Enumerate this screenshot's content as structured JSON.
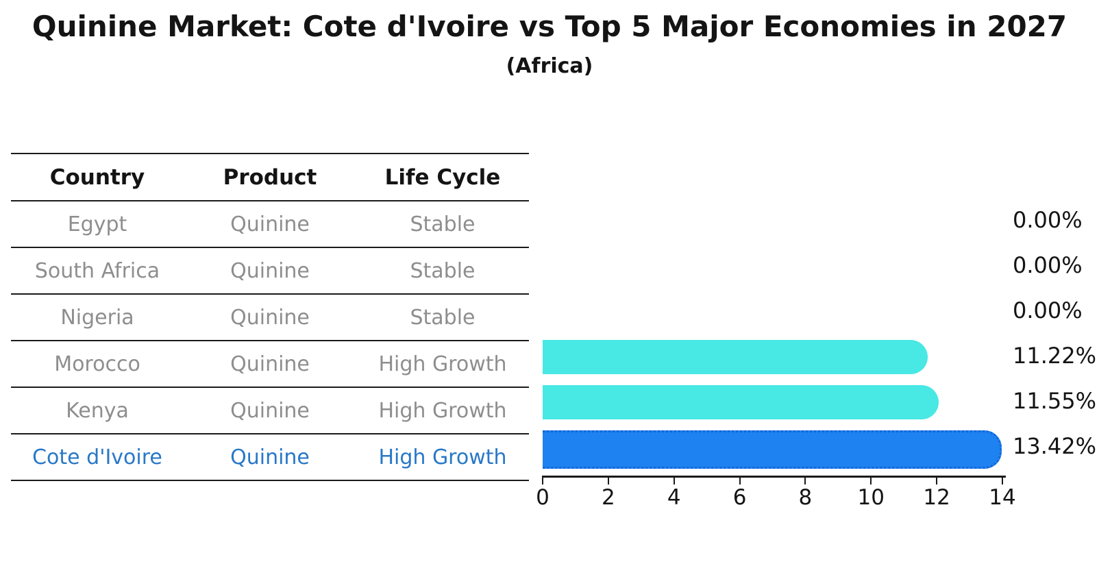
{
  "title": "Quinine Market: Cote d'Ivoire vs Top 5 Major Economies in 2027",
  "subtitle": "(Africa)",
  "table": {
    "headers": [
      "Country",
      "Product",
      "Life Cycle"
    ],
    "rows": [
      {
        "country": "Egypt",
        "product": "Quinine",
        "life_cycle": "Stable",
        "highlight": false
      },
      {
        "country": "South Africa",
        "product": "Quinine",
        "life_cycle": "Stable",
        "highlight": false
      },
      {
        "country": "Nigeria",
        "product": "Quinine",
        "life_cycle": "Stable",
        "highlight": false
      },
      {
        "country": "Morocco",
        "product": "Quinine",
        "life_cycle": "High Growth",
        "highlight": false
      },
      {
        "country": "Kenya",
        "product": "Quinine",
        "life_cycle": "High Growth",
        "highlight": false
      },
      {
        "country": "Cote d'Ivoire",
        "product": "Quinine",
        "life_cycle": "High Growth",
        "highlight": true
      }
    ]
  },
  "chart_data": {
    "type": "bar",
    "orientation": "horizontal",
    "title": "Quinine Market: Cote d'Ivoire vs Top 5 Major Economies in 2027",
    "subtitle": "(Africa)",
    "categories": [
      "Egypt",
      "South Africa",
      "Nigeria",
      "Morocco",
      "Kenya",
      "Cote d'Ivoire"
    ],
    "values": [
      0.0,
      0.0,
      0.0,
      11.22,
      11.55,
      13.42
    ],
    "value_labels": [
      "0.00%",
      "0.00%",
      "0.00%",
      "11.22%",
      "11.55%",
      "13.42%"
    ],
    "xlabel": "",
    "ylabel": "",
    "xlim": [
      0,
      14
    ],
    "xticks": [
      0,
      2,
      4,
      6,
      8,
      10,
      12,
      14
    ],
    "xtick_labels": [
      "0",
      "2",
      "4",
      "6",
      "8",
      "10",
      "12",
      "14"
    ],
    "grid": false,
    "legend": "none",
    "bar_color_default": "#48e8e4",
    "bar_color_highlight": "#1e82f0",
    "highlight_index": 5,
    "highlight_edge_style": "dotted"
  },
  "colors": {
    "background": "#ffffff",
    "text_primary": "#141414",
    "text_muted": "#8e8e8e",
    "text_highlight": "#2878c8",
    "bar_cyan": "#48e8e4",
    "bar_blue": "#1e82f0",
    "line": "#1a1a1a"
  }
}
